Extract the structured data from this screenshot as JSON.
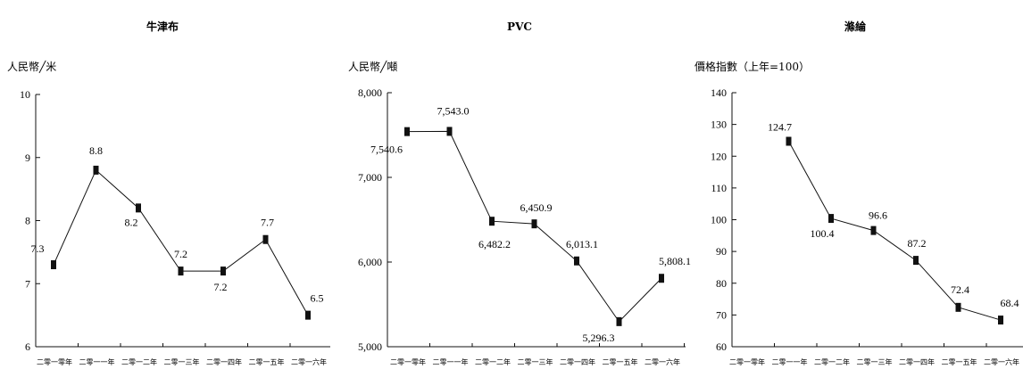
{
  "chart_data": [
    {
      "type": "line",
      "title": "牛津布",
      "ylabel": "人民幣╱米",
      "xlabel": "",
      "ylim": [
        6,
        10
      ],
      "yticks": [
        "6",
        "7",
        "8",
        "9",
        "10"
      ],
      "categories": [
        "二零一零年",
        "二零一一年",
        "二零一二年",
        "二零一三年",
        "二零一四年",
        "二零一五年",
        "二零一六年"
      ],
      "values": [
        7.3,
        8.8,
        8.2,
        7.2,
        7.2,
        7.7,
        6.5
      ],
      "data_labels": [
        "7.3",
        "8.8",
        "8.2",
        "7.2",
        "7.2",
        "7.7",
        "6.5"
      ],
      "grid": false,
      "marker_color": "#111111"
    },
    {
      "type": "line",
      "title": "PVC",
      "ylabel": "人民幣╱噸",
      "xlabel": "",
      "ylim": [
        5000,
        8000
      ],
      "yticks": [
        "5,000",
        "6,000",
        "7,000",
        "8,000"
      ],
      "categories": [
        "二零一零年",
        "二零一一年",
        "二零一二年",
        "二零一三年",
        "二零一四年",
        "二零一五年",
        "二零一六年"
      ],
      "values": [
        7540.6,
        7543.0,
        6482.2,
        6450.9,
        6013.1,
        5296.3,
        5808.1
      ],
      "data_labels": [
        "7,540.6",
        "7,543.0",
        "6,482.2",
        "6,450.9",
        "6,013.1",
        "5,296.3",
        "5,808.1"
      ],
      "grid": false,
      "marker_color": "#111111"
    },
    {
      "type": "line",
      "title": "滌綸",
      "ylabel": "價格指數（上年=100）",
      "xlabel": "",
      "ylim": [
        60,
        140
      ],
      "yticks": [
        "60",
        "70",
        "80",
        "90",
        "100",
        "110",
        "120",
        "130",
        "140"
      ],
      "categories": [
        "二零一零年",
        "二零一一年",
        "二零一二年",
        "二零一三年",
        "二零一四年",
        "二零一五年",
        "二零一六年"
      ],
      "values": [
        null,
        124.7,
        100.4,
        96.6,
        87.2,
        72.4,
        68.4
      ],
      "data_labels": [
        "",
        "124.7",
        "100.4",
        "96.6",
        "87.2",
        "72.4",
        "68.4"
      ],
      "grid": false,
      "marker_color": "#111111"
    }
  ]
}
